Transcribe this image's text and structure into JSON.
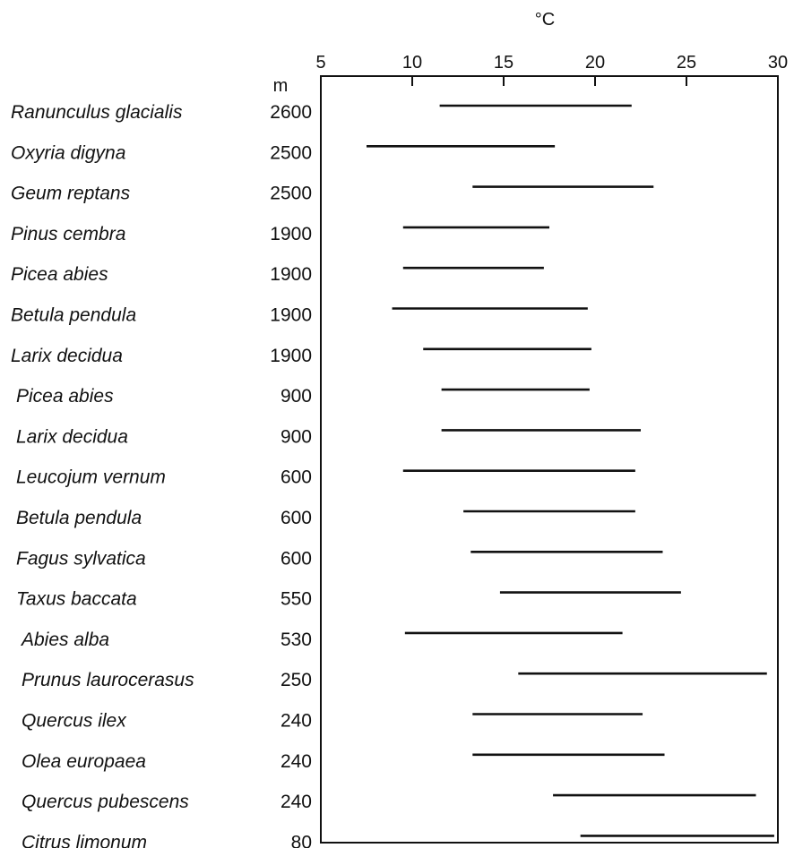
{
  "chart_data": {
    "type": "range_bar",
    "xlabel": "°C",
    "altitude_unit": "m",
    "xlim": [
      5,
      30
    ],
    "x_ticks": [
      5,
      10,
      15,
      20,
      25,
      30
    ],
    "grid": false,
    "rows": [
      {
        "species": "Ranunculus glacialis",
        "altitude": "2600",
        "min": 11.5,
        "max": 22.0
      },
      {
        "species": "Oxyria digyna",
        "altitude": "2500",
        "min": 7.5,
        "max": 17.8
      },
      {
        "species": "Geum reptans",
        "altitude": "2500",
        "min": 13.3,
        "max": 23.2
      },
      {
        "species": "Pinus cembra",
        "altitude": "1900",
        "min": 9.5,
        "max": 17.5
      },
      {
        "species": "Picea abies",
        "altitude": "1900",
        "min": 9.5,
        "max": 17.2
      },
      {
        "species": "Betula pendula",
        "altitude": "1900",
        "min": 8.9,
        "max": 19.6
      },
      {
        "species": "Larix decidua",
        "altitude": "1900",
        "min": 10.6,
        "max": 19.8
      },
      {
        "species": "Picea abies",
        "altitude": "900",
        "min": 11.6,
        "max": 19.7
      },
      {
        "species": "Larix decidua",
        "altitude": "900",
        "min": 11.6,
        "max": 22.5
      },
      {
        "species": "Leucojum vernum",
        "altitude": "600",
        "min": 9.5,
        "max": 22.2
      },
      {
        "species": "Betula pendula",
        "altitude": "600",
        "min": 12.8,
        "max": 22.2
      },
      {
        "species": "Fagus sylvatica",
        "altitude": "600",
        "min": 13.2,
        "max": 23.7
      },
      {
        "species": "Taxus baccata",
        "altitude": "550",
        "min": 14.8,
        "max": 24.7
      },
      {
        "species": "Abies alba",
        "altitude": "530",
        "min": 9.6,
        "max": 21.5
      },
      {
        "species": "Prunus laurocerasus",
        "altitude": "250",
        "min": 15.8,
        "max": 29.4
      },
      {
        "species": "Quercus ilex",
        "altitude": "240",
        "min": 13.3,
        "max": 22.6
      },
      {
        "species": "Olea europaea",
        "altitude": "240",
        "min": 13.3,
        "max": 23.8
      },
      {
        "species": "Quercus pubescens",
        "altitude": "240",
        "min": 17.7,
        "max": 28.8
      },
      {
        "species": "Citrus limonum",
        "altitude": "80",
        "min": 19.2,
        "max": 29.8
      }
    ]
  }
}
